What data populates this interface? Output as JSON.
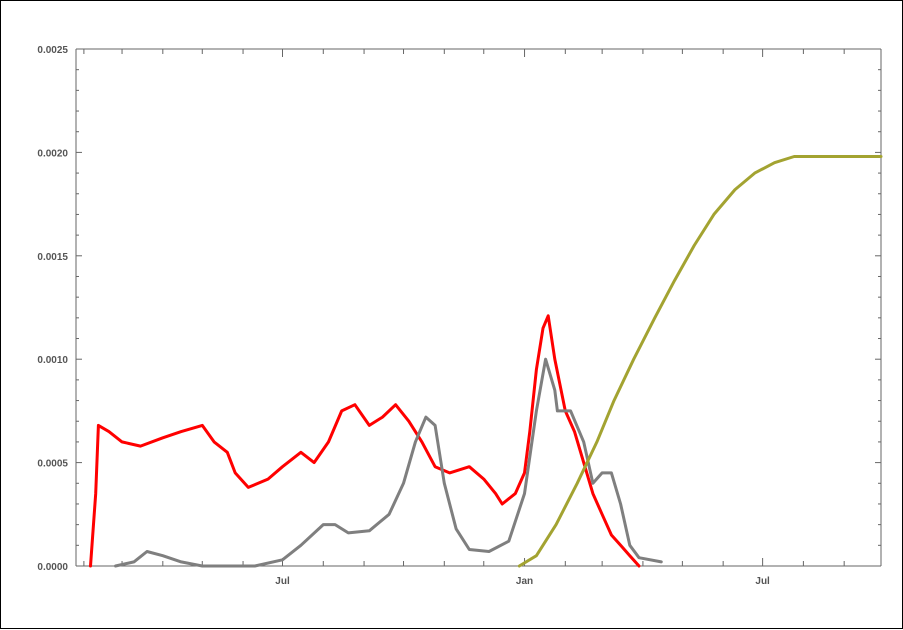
{
  "chart_data": {
    "type": "line",
    "title": "",
    "xlabel": "",
    "ylabel": "",
    "grid": false,
    "legend": "none",
    "x_ticks": [
      "Jul",
      "Jan",
      "Jul"
    ],
    "y_ticks": [
      "0.0000",
      "0.0005",
      "0.0010",
      "0.0015",
      "0.0020",
      "0.0025"
    ],
    "xlim": [
      "2020-01-26",
      "2021-09-29"
    ],
    "ylim": [
      0,
      0.0025
    ],
    "colors": {
      "red": "#ff0000",
      "gray": "#7f7f7f",
      "olive": "#a3a331",
      "axis": "#666666",
      "tick_text": "#555555"
    },
    "series": [
      {
        "color": "red",
        "points": [
          [
            "2020-02-06",
            0.0
          ],
          [
            "2020-02-10",
            0.00035
          ],
          [
            "2020-02-12",
            0.00068
          ],
          [
            "2020-02-20",
            0.00065
          ],
          [
            "2020-03-01",
            0.0006
          ],
          [
            "2020-03-15",
            0.00058
          ],
          [
            "2020-04-01",
            0.00062
          ],
          [
            "2020-04-15",
            0.00065
          ],
          [
            "2020-05-01",
            0.00068
          ],
          [
            "2020-05-10",
            0.0006
          ],
          [
            "2020-05-20",
            0.00055
          ],
          [
            "2020-05-26",
            0.00045
          ],
          [
            "2020-06-05",
            0.00038
          ],
          [
            "2020-06-20",
            0.00042
          ],
          [
            "2020-07-01",
            0.00048
          ],
          [
            "2020-07-15",
            0.00055
          ],
          [
            "2020-07-25",
            0.0005
          ],
          [
            "2020-08-05",
            0.0006
          ],
          [
            "2020-08-15",
            0.00075
          ],
          [
            "2020-08-25",
            0.00078
          ],
          [
            "2020-09-05",
            0.00068
          ],
          [
            "2020-09-15",
            0.00072
          ],
          [
            "2020-09-25",
            0.00078
          ],
          [
            "2020-10-05",
            0.0007
          ],
          [
            "2020-10-15",
            0.0006
          ],
          [
            "2020-10-25",
            0.00048
          ],
          [
            "2020-11-05",
            0.00045
          ],
          [
            "2020-11-20",
            0.00048
          ],
          [
            "2020-12-01",
            0.00042
          ],
          [
            "2020-12-10",
            0.00035
          ],
          [
            "2020-12-15",
            0.0003
          ],
          [
            "2020-12-25",
            0.00035
          ],
          [
            "2021-01-01",
            0.00045
          ],
          [
            "2021-01-05",
            0.00065
          ],
          [
            "2021-01-10",
            0.00095
          ],
          [
            "2021-01-15",
            0.00115
          ],
          [
            "2021-01-19",
            0.00121
          ],
          [
            "2021-01-24",
            0.001
          ],
          [
            "2021-02-01",
            0.00075
          ],
          [
            "2021-02-08",
            0.00065
          ],
          [
            "2021-02-15",
            0.0005
          ],
          [
            "2021-02-22",
            0.00035
          ],
          [
            "2021-03-01",
            0.00025
          ],
          [
            "2021-03-08",
            0.00015
          ],
          [
            "2021-03-15",
            0.0001
          ],
          [
            "2021-03-22",
            5e-05
          ],
          [
            "2021-03-29",
            0.0
          ]
        ]
      },
      {
        "color": "gray",
        "points": [
          [
            "2020-02-25",
            0.0
          ],
          [
            "2020-03-10",
            2e-05
          ],
          [
            "2020-03-20",
            7e-05
          ],
          [
            "2020-04-01",
            5e-05
          ],
          [
            "2020-04-15",
            2e-05
          ],
          [
            "2020-05-01",
            0.0
          ],
          [
            "2020-06-10",
            0.0
          ],
          [
            "2020-07-01",
            3e-05
          ],
          [
            "2020-07-15",
            0.0001
          ],
          [
            "2020-08-01",
            0.0002
          ],
          [
            "2020-08-10",
            0.0002
          ],
          [
            "2020-08-20",
            0.00016
          ],
          [
            "2020-09-05",
            0.00017
          ],
          [
            "2020-09-20",
            0.00025
          ],
          [
            "2020-10-01",
            0.0004
          ],
          [
            "2020-10-10",
            0.0006
          ],
          [
            "2020-10-18",
            0.00072
          ],
          [
            "2020-10-25",
            0.00068
          ],
          [
            "2020-11-01",
            0.0004
          ],
          [
            "2020-11-10",
            0.00018
          ],
          [
            "2020-11-20",
            8e-05
          ],
          [
            "2020-12-05",
            7e-05
          ],
          [
            "2020-12-20",
            0.00012
          ],
          [
            "2021-01-01",
            0.00035
          ],
          [
            "2021-01-10",
            0.00075
          ],
          [
            "2021-01-17",
            0.001
          ],
          [
            "2021-01-24",
            0.00085
          ],
          [
            "2021-01-26",
            0.00075
          ],
          [
            "2021-02-05",
            0.00075
          ],
          [
            "2021-02-15",
            0.0006
          ],
          [
            "2021-02-22",
            0.0004
          ],
          [
            "2021-03-01",
            0.00045
          ],
          [
            "2021-03-08",
            0.00045
          ],
          [
            "2021-03-15",
            0.0003
          ],
          [
            "2021-03-22",
            0.0001
          ],
          [
            "2021-03-29",
            4e-05
          ],
          [
            "2021-04-15",
            2e-05
          ]
        ]
      },
      {
        "color": "olive",
        "points": [
          [
            "2020-12-28",
            0.0
          ],
          [
            "2021-01-10",
            5e-05
          ],
          [
            "2021-01-25",
            0.0002
          ],
          [
            "2021-02-10",
            0.0004
          ],
          [
            "2021-02-25",
            0.0006
          ],
          [
            "2021-03-10",
            0.0008
          ],
          [
            "2021-03-25",
            0.001
          ],
          [
            "2021-04-10",
            0.0012
          ],
          [
            "2021-04-25",
            0.00138
          ],
          [
            "2021-05-10",
            0.00155
          ],
          [
            "2021-05-25",
            0.0017
          ],
          [
            "2021-06-10",
            0.00182
          ],
          [
            "2021-06-25",
            0.0019
          ],
          [
            "2021-07-10",
            0.00195
          ],
          [
            "2021-07-25",
            0.00198
          ],
          [
            "2021-08-10",
            0.00198
          ],
          [
            "2021-09-29",
            0.00198
          ]
        ]
      }
    ]
  }
}
